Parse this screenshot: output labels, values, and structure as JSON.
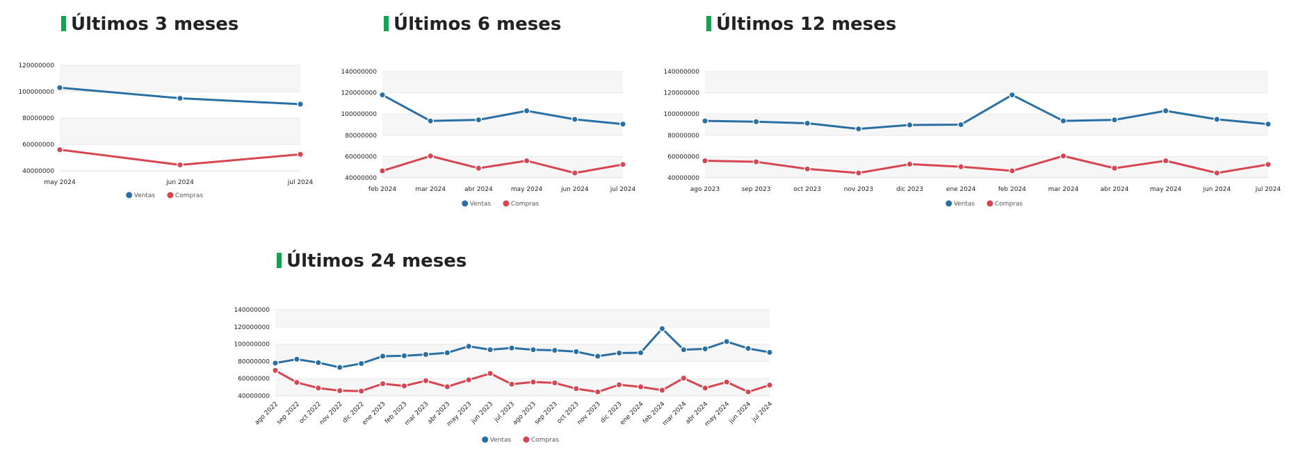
{
  "colors": {
    "ventas": "#2a6fa3",
    "compras": "#d64550",
    "accent": "#1aa053",
    "band": "#f6f6f6"
  },
  "chart_data": [
    {
      "id": "c3",
      "type": "line",
      "title": "Últimos 3 meses",
      "categories": [
        "may 2024",
        "jun 2024",
        "jul 2024"
      ],
      "series": [
        {
          "name": "Ventas",
          "values": [
            103000000,
            95000000,
            90500000
          ]
        },
        {
          "name": "Compras",
          "values": [
            56000000,
            44500000,
            52500000
          ]
        }
      ],
      "yticks": [
        "120000000",
        "100000000",
        "80000000",
        "60000000",
        "40000000"
      ],
      "ylim": [
        40000000,
        120000000
      ],
      "legend": "bottom-center"
    },
    {
      "id": "c6",
      "type": "line",
      "title": "Últimos 6 meses",
      "categories": [
        "feb 2024",
        "mar 2024",
        "abr 2024",
        "may 2024",
        "jun 2024",
        "jul 2024"
      ],
      "series": [
        {
          "name": "Ventas",
          "values": [
            118000000,
            93500000,
            94500000,
            103000000,
            95000000,
            90500000
          ]
        },
        {
          "name": "Compras",
          "values": [
            46500000,
            60500000,
            49000000,
            56000000,
            44500000,
            52500000
          ]
        }
      ],
      "yticks": [
        "140000000",
        "120000000",
        "100000000",
        "80000000",
        "60000000",
        "40000000"
      ],
      "ylim": [
        40000000,
        140000000
      ],
      "legend": "bottom-center"
    },
    {
      "id": "c12",
      "type": "line",
      "title": "Últimos 12 meses",
      "categories": [
        "ago 2023",
        "sep 2023",
        "oct 2023",
        "nov 2023",
        "dic 2023",
        "ene 2024",
        "feb 2024",
        "mar 2024",
        "abr 2024",
        "may 2024",
        "jun 2024",
        "jul 2024"
      ],
      "series": [
        {
          "name": "Ventas",
          "values": [
            93500000,
            92800000,
            91300000,
            86000000,
            89700000,
            90000000,
            118000000,
            93500000,
            94500000,
            103000000,
            95000000,
            90500000
          ]
        },
        {
          "name": "Compras",
          "values": [
            56000000,
            55000000,
            48300000,
            44500000,
            52800000,
            50400000,
            46500000,
            60500000,
            49000000,
            56000000,
            44500000,
            52500000
          ]
        }
      ],
      "yticks": [
        "140000000",
        "120000000",
        "100000000",
        "80000000",
        "60000000",
        "40000000"
      ],
      "ylim": [
        40000000,
        140000000
      ],
      "legend": "bottom-center"
    },
    {
      "id": "c24",
      "type": "line",
      "title": "Últimos 24 meses",
      "categories": [
        "ago 2022",
        "sep 2022",
        "oct 2022",
        "nov 2022",
        "dic 2022",
        "ene 2023",
        "feb 2023",
        "mar 2023",
        "abr 2023",
        "may 2023",
        "jun 2023",
        "jul 2023",
        "ago 2023",
        "sep 2023",
        "oct 2023",
        "nov 2023",
        "dic 2023",
        "ene 2024",
        "feb 2024",
        "mar 2024",
        "abr 2024",
        "may 2024",
        "jun 2024",
        "jul 2024"
      ],
      "series": [
        {
          "name": "Ventas",
          "values": [
            78000000,
            82500000,
            78500000,
            73000000,
            77500000,
            86000000,
            86500000,
            88000000,
            90000000,
            97500000,
            93500000,
            95500000,
            93500000,
            92800000,
            91300000,
            86000000,
            89700000,
            90000000,
            118000000,
            93500000,
            94500000,
            103000000,
            95000000,
            90500000
          ]
        },
        {
          "name": "Compras",
          "values": [
            69500000,
            55500000,
            49000000,
            46000000,
            45500000,
            54000000,
            51500000,
            57500000,
            50500000,
            58500000,
            66000000,
            53500000,
            56000000,
            55000000,
            48300000,
            44500000,
            52800000,
            50400000,
            46500000,
            60500000,
            49000000,
            56000000,
            44500000,
            52500000
          ]
        }
      ],
      "yticks": [
        "140000000",
        "120000000",
        "100000000",
        "80000000",
        "60000000",
        "40000000"
      ],
      "ylim": [
        40000000,
        140000000
      ],
      "legend": "bottom-center"
    }
  ]
}
